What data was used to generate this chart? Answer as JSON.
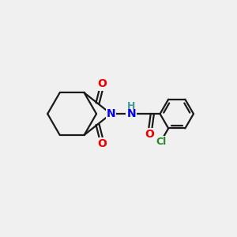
{
  "background_color": "#f0f0f0",
  "bond_color": "#1a1a1a",
  "bond_width": 1.6,
  "atom_colors": {
    "N": "#0000ee",
    "O": "#ee0000",
    "Cl": "#228822",
    "H": "#449999",
    "C": "#1a1a1a"
  },
  "font_size_N": 10,
  "font_size_O": 10,
  "font_size_Cl": 9,
  "font_size_H": 9
}
